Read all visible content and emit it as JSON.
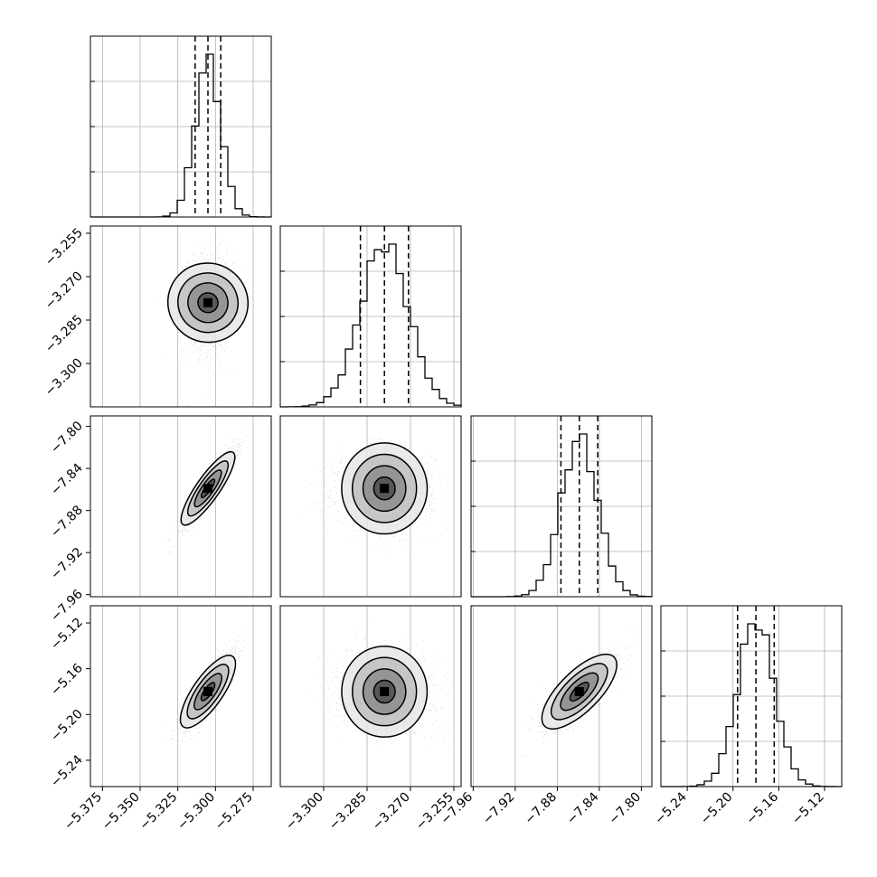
{
  "chart_data": {
    "type": "corner",
    "n_params": 4,
    "hist_bins": 25,
    "grid": true,
    "colors": {
      "line": "#000000",
      "grid": "#b0b0b0",
      "points": "#7f7f7f"
    },
    "params": [
      {
        "index": 0,
        "mean": -5.305,
        "std": 0.0085,
        "quantiles": [
          -5.3135,
          -5.305,
          -5.2965
        ],
        "range": [
          -5.383,
          -5.263
        ],
        "tick_values": [
          -5.375,
          -5.35,
          -5.325,
          -5.3,
          -5.275
        ],
        "tick_labels": [
          "−5.375",
          "−5.350",
          "−5.325",
          "−5.300",
          "−5.275"
        ]
      },
      {
        "index": 1,
        "mean": -3.279,
        "std": 0.0083,
        "quantiles": [
          -3.2873,
          -3.279,
          -3.2707
        ],
        "range": [
          -3.315,
          -3.2525
        ],
        "tick_values": [
          -3.3,
          -3.285,
          -3.27,
          -3.255
        ],
        "tick_labels": [
          "−3.300",
          "−3.285",
          "−3.270",
          "−3.255"
        ]
      },
      {
        "index": 2,
        "mean": -7.859,
        "std": 0.0175,
        "quantiles": [
          -7.8765,
          -7.859,
          -7.8415
        ],
        "range": [
          -7.962,
          -7.79
        ],
        "tick_values": [
          -7.96,
          -7.92,
          -7.88,
          -7.84,
          -7.8
        ],
        "tick_labels": [
          "−7.96",
          "−7.92",
          "−7.88",
          "−7.84",
          "−7.80"
        ]
      },
      {
        "index": 3,
        "mean": -5.18,
        "std": 0.016,
        "quantiles": [
          -5.196,
          -5.18,
          -5.164
        ],
        "range": [
          -5.263,
          -5.105
        ],
        "tick_values": [
          -5.24,
          -5.2,
          -5.16,
          -5.12
        ],
        "tick_labels": [
          "−5.24",
          "−5.20",
          "−5.16",
          "−5.12"
        ]
      }
    ],
    "correlations": [
      [
        1,
        0.05,
        0.92,
        0.85
      ],
      [
        0.05,
        1,
        0.0,
        0.0
      ],
      [
        0.92,
        0.0,
        1,
        0.78
      ],
      [
        0.85,
        0.0,
        0.78,
        1
      ]
    ]
  }
}
